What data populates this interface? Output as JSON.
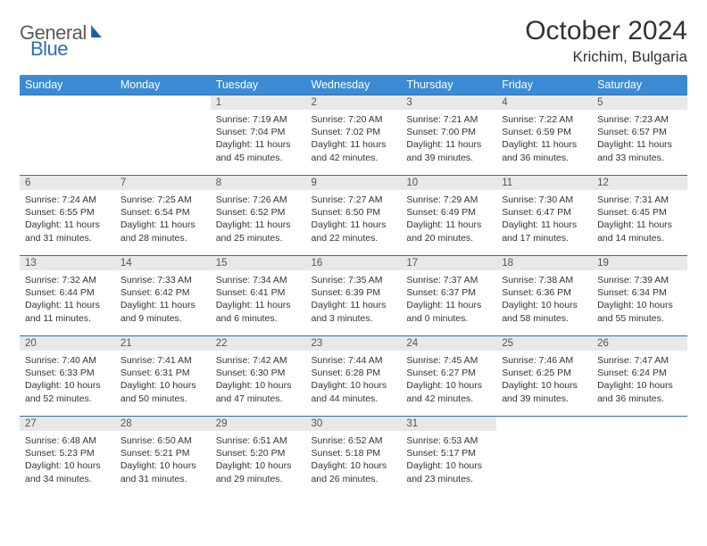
{
  "logo": {
    "textA": "General",
    "textB": "Blue",
    "accent": "#2a6fb5"
  },
  "title": "October 2024",
  "location": "Krichim, Bulgaria",
  "colors": {
    "header_bg": "#3b8bd4",
    "header_fg": "#ffffff",
    "daynum_bg": "#e8e8e8",
    "daynum_fg": "#555555",
    "rule": "#2a6fb5",
    "body_fg": "#333333",
    "page_bg": "#ffffff"
  },
  "typography": {
    "title_fontsize": 30,
    "location_fontsize": 17,
    "weekday_fontsize": 12.5,
    "daynum_fontsize": 11.5,
    "body_fontsize": 10.5
  },
  "weekdays": [
    "Sunday",
    "Monday",
    "Tuesday",
    "Wednesday",
    "Thursday",
    "Friday",
    "Saturday"
  ],
  "weeks": [
    [
      null,
      null,
      {
        "n": "1",
        "sr": "7:19 AM",
        "ss": "7:04 PM",
        "dl": "11 hours and 45 minutes."
      },
      {
        "n": "2",
        "sr": "7:20 AM",
        "ss": "7:02 PM",
        "dl": "11 hours and 42 minutes."
      },
      {
        "n": "3",
        "sr": "7:21 AM",
        "ss": "7:00 PM",
        "dl": "11 hours and 39 minutes."
      },
      {
        "n": "4",
        "sr": "7:22 AM",
        "ss": "6:59 PM",
        "dl": "11 hours and 36 minutes."
      },
      {
        "n": "5",
        "sr": "7:23 AM",
        "ss": "6:57 PM",
        "dl": "11 hours and 33 minutes."
      }
    ],
    [
      {
        "n": "6",
        "sr": "7:24 AM",
        "ss": "6:55 PM",
        "dl": "11 hours and 31 minutes."
      },
      {
        "n": "7",
        "sr": "7:25 AM",
        "ss": "6:54 PM",
        "dl": "11 hours and 28 minutes."
      },
      {
        "n": "8",
        "sr": "7:26 AM",
        "ss": "6:52 PM",
        "dl": "11 hours and 25 minutes."
      },
      {
        "n": "9",
        "sr": "7:27 AM",
        "ss": "6:50 PM",
        "dl": "11 hours and 22 minutes."
      },
      {
        "n": "10",
        "sr": "7:29 AM",
        "ss": "6:49 PM",
        "dl": "11 hours and 20 minutes."
      },
      {
        "n": "11",
        "sr": "7:30 AM",
        "ss": "6:47 PM",
        "dl": "11 hours and 17 minutes."
      },
      {
        "n": "12",
        "sr": "7:31 AM",
        "ss": "6:45 PM",
        "dl": "11 hours and 14 minutes."
      }
    ],
    [
      {
        "n": "13",
        "sr": "7:32 AM",
        "ss": "6:44 PM",
        "dl": "11 hours and 11 minutes."
      },
      {
        "n": "14",
        "sr": "7:33 AM",
        "ss": "6:42 PM",
        "dl": "11 hours and 9 minutes."
      },
      {
        "n": "15",
        "sr": "7:34 AM",
        "ss": "6:41 PM",
        "dl": "11 hours and 6 minutes."
      },
      {
        "n": "16",
        "sr": "7:35 AM",
        "ss": "6:39 PM",
        "dl": "11 hours and 3 minutes."
      },
      {
        "n": "17",
        "sr": "7:37 AM",
        "ss": "6:37 PM",
        "dl": "11 hours and 0 minutes."
      },
      {
        "n": "18",
        "sr": "7:38 AM",
        "ss": "6:36 PM",
        "dl": "10 hours and 58 minutes."
      },
      {
        "n": "19",
        "sr": "7:39 AM",
        "ss": "6:34 PM",
        "dl": "10 hours and 55 minutes."
      }
    ],
    [
      {
        "n": "20",
        "sr": "7:40 AM",
        "ss": "6:33 PM",
        "dl": "10 hours and 52 minutes."
      },
      {
        "n": "21",
        "sr": "7:41 AM",
        "ss": "6:31 PM",
        "dl": "10 hours and 50 minutes."
      },
      {
        "n": "22",
        "sr": "7:42 AM",
        "ss": "6:30 PM",
        "dl": "10 hours and 47 minutes."
      },
      {
        "n": "23",
        "sr": "7:44 AM",
        "ss": "6:28 PM",
        "dl": "10 hours and 44 minutes."
      },
      {
        "n": "24",
        "sr": "7:45 AM",
        "ss": "6:27 PM",
        "dl": "10 hours and 42 minutes."
      },
      {
        "n": "25",
        "sr": "7:46 AM",
        "ss": "6:25 PM",
        "dl": "10 hours and 39 minutes."
      },
      {
        "n": "26",
        "sr": "7:47 AM",
        "ss": "6:24 PM",
        "dl": "10 hours and 36 minutes."
      }
    ],
    [
      {
        "n": "27",
        "sr": "6:48 AM",
        "ss": "5:23 PM",
        "dl": "10 hours and 34 minutes."
      },
      {
        "n": "28",
        "sr": "6:50 AM",
        "ss": "5:21 PM",
        "dl": "10 hours and 31 minutes."
      },
      {
        "n": "29",
        "sr": "6:51 AM",
        "ss": "5:20 PM",
        "dl": "10 hours and 29 minutes."
      },
      {
        "n": "30",
        "sr": "6:52 AM",
        "ss": "5:18 PM",
        "dl": "10 hours and 26 minutes."
      },
      {
        "n": "31",
        "sr": "6:53 AM",
        "ss": "5:17 PM",
        "dl": "10 hours and 23 minutes."
      },
      null,
      null
    ]
  ],
  "labels": {
    "sunrise": "Sunrise:",
    "sunset": "Sunset:",
    "daylight": "Daylight:"
  }
}
